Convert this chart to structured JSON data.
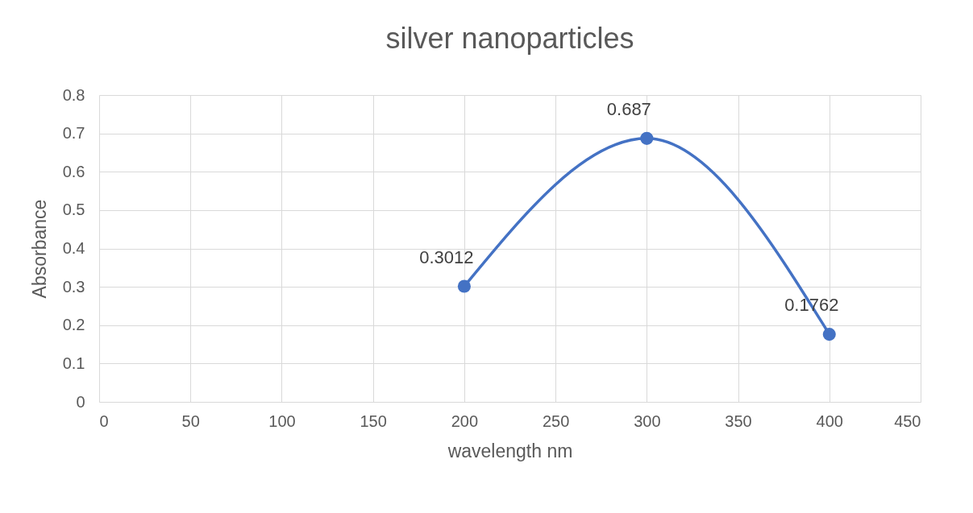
{
  "chart_data": {
    "type": "line",
    "title": "silver nanoparticles",
    "xlabel": "wavelength nm",
    "ylabel": "Absorbance",
    "x": [
      200,
      300,
      400
    ],
    "series": [
      {
        "color": "#4472c4",
        "values": [
          0.3012,
          0.687,
          0.1762
        ]
      }
    ],
    "xlim": [
      0,
      450
    ],
    "xticks": [
      0,
      50,
      100,
      150,
      200,
      250,
      300,
      350,
      400,
      450
    ],
    "ylim": [
      0,
      0.8
    ],
    "yticks": [
      0,
      0.1,
      0.2,
      0.3,
      0.4,
      0.5,
      0.6,
      0.7,
      0.8
    ],
    "grid": true,
    "marker": "circle",
    "line_style": "solid",
    "data_labels": true
  }
}
